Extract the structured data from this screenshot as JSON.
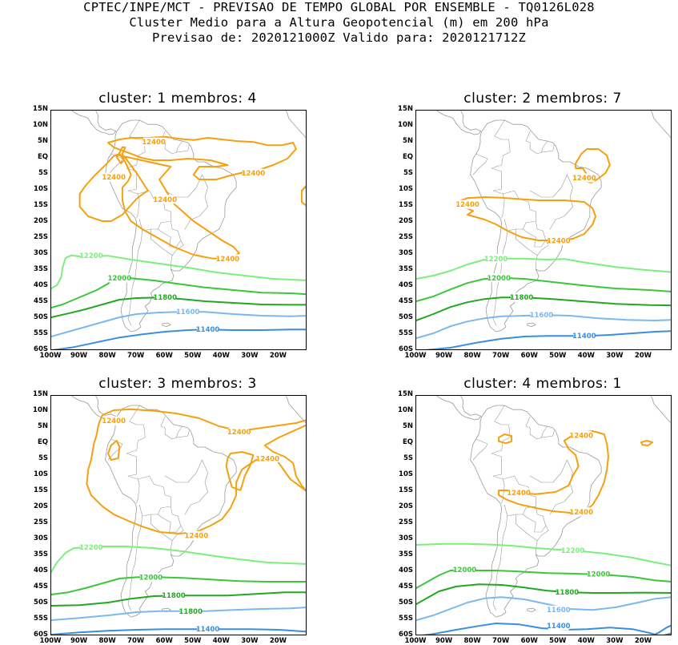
{
  "header": {
    "line1": "CPTEC/INPE/MCT - PREVISAO DE TEMPO GLOBAL POR ENSEMBLE - TQ0126L028",
    "line2": "Cluster Medio para a Altura Geopotencial (m) em 200 hPa",
    "line3": "Previsao de: 2020121000Z   Valido para: 2020121712Z"
  },
  "axes": {
    "lat_labels": [
      "15N",
      "10N",
      "5N",
      "EQ",
      "5S",
      "10S",
      "15S",
      "20S",
      "25S",
      "30S",
      "35S",
      "40S",
      "45S",
      "50S",
      "55S",
      "60S"
    ],
    "lon_labels": [
      "100W",
      "90W",
      "80W",
      "70W",
      "60W",
      "50W",
      "40W",
      "30W",
      "20W"
    ]
  },
  "colors": {
    "c12400": "#f5a00f",
    "c12200": "#7cee7c",
    "c12000": "#3bc63b",
    "c11800": "#21a821",
    "c11600": "#7ab8ee",
    "c11400": "#3a8ee0",
    "coast": "#9a9a9a"
  },
  "panels": [
    {
      "title": "cluster: 1  membros: 4",
      "labels": [
        {
          "text": "12400",
          "lon": -64,
          "lat": 5.2,
          "c": "c12400"
        },
        {
          "text": "12400",
          "lon": -29,
          "lat": -4.5,
          "c": "c12400"
        },
        {
          "text": "12400",
          "lon": -78,
          "lat": -5.8,
          "c": "c12400"
        },
        {
          "text": "12400",
          "lon": -60,
          "lat": -12.7,
          "c": "c12400"
        },
        {
          "text": "12400",
          "lon": -38,
          "lat": -31.2,
          "c": "c12400"
        },
        {
          "text": "12200",
          "lon": -86,
          "lat": -30.2,
          "c": "c12200"
        },
        {
          "text": "12000",
          "lon": -76,
          "lat": -37.3,
          "c": "c12000"
        },
        {
          "text": "11800",
          "lon": -60,
          "lat": -43.3,
          "c": "c11800"
        },
        {
          "text": "11600",
          "lon": -52,
          "lat": -47.8,
          "c": "c11600"
        },
        {
          "text": "11400",
          "lon": -45,
          "lat": -53.3,
          "c": "c11400"
        }
      ]
    },
    {
      "title": "cluster: 2  membros: 7",
      "labels": [
        {
          "text": "12400",
          "lon": -41,
          "lat": -6,
          "c": "c12400"
        },
        {
          "text": "12400",
          "lon": -82,
          "lat": -14.3,
          "c": "c12400"
        },
        {
          "text": "12400",
          "lon": -50,
          "lat": -25.6,
          "c": "c12400"
        },
        {
          "text": "12200",
          "lon": -72,
          "lat": -31.2,
          "c": "c12200"
        },
        {
          "text": "12000",
          "lon": -71,
          "lat": -37.2,
          "c": "c12000"
        },
        {
          "text": "11800",
          "lon": -63,
          "lat": -43.3,
          "c": "c11800"
        },
        {
          "text": "11600",
          "lon": -56,
          "lat": -48.8,
          "c": "c11600"
        },
        {
          "text": "11400",
          "lon": -41,
          "lat": -55.3,
          "c": "c11400"
        }
      ]
    },
    {
      "title": "cluster: 3  membros: 3",
      "labels": [
        {
          "text": "12400",
          "lon": -78,
          "lat": 7.2,
          "c": "c12400"
        },
        {
          "text": "12400",
          "lon": -34,
          "lat": 3.7,
          "c": "c12400"
        },
        {
          "text": "12400",
          "lon": -24,
          "lat": -4.6,
          "c": "c12400"
        },
        {
          "text": "12400",
          "lon": -49,
          "lat": -28.6,
          "c": "c12400"
        },
        {
          "text": "12200",
          "lon": -86,
          "lat": -32.3,
          "c": "c12200"
        },
        {
          "text": "12000",
          "lon": -65,
          "lat": -41.6,
          "c": "c12000"
        },
        {
          "text": "11800",
          "lon": -57,
          "lat": -47.3,
          "c": "c11800"
        },
        {
          "text": "11800",
          "lon": -51,
          "lat": -52.2,
          "c": "c11800"
        },
        {
          "text": "11400",
          "lon": -45,
          "lat": -57.8,
          "c": "c11400"
        }
      ]
    },
    {
      "title": "cluster: 4  membros: 1",
      "labels": [
        {
          "text": "12400",
          "lon": -42,
          "lat": 2.6,
          "c": "c12400"
        },
        {
          "text": "12400",
          "lon": -64,
          "lat": -15.3,
          "c": "c12400"
        },
        {
          "text": "12400",
          "lon": -42,
          "lat": -21.2,
          "c": "c12400"
        },
        {
          "text": "12200",
          "lon": -45,
          "lat": -33.3,
          "c": "c12200"
        },
        {
          "text": "12000",
          "lon": -83,
          "lat": -39.3,
          "c": "c12000"
        },
        {
          "text": "12000",
          "lon": -36,
          "lat": -40.6,
          "c": "c12000"
        },
        {
          "text": "11800",
          "lon": -47,
          "lat": -46.3,
          "c": "c11800"
        },
        {
          "text": "11600",
          "lon": -50,
          "lat": -51.8,
          "c": "c11600"
        },
        {
          "text": "11400",
          "lon": -50,
          "lat": -56.8,
          "c": "c11400"
        }
      ]
    }
  ]
}
